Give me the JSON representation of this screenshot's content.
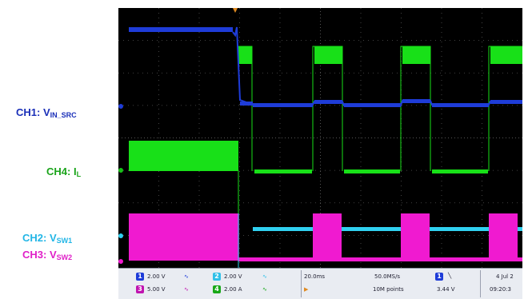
{
  "labels": {
    "ch1": {
      "main": "CH1: V",
      "sub": "IN_SRC",
      "color": "#1a2fb8"
    },
    "ch4": {
      "main": "CH4: I",
      "sub": "L",
      "color": "#1aa41a"
    },
    "ch2": {
      "main": "CH2: V",
      "sub": "SW1",
      "color": "#22b6e6"
    },
    "ch3": {
      "main": "CH3: V",
      "sub": "SW2",
      "color": "#e020c8"
    }
  },
  "colors": {
    "ch1": "#1e3cd8",
    "ch2": "#30d0f0",
    "ch3": "#f01ad0",
    "ch4": "#18e018",
    "grid": "#555555",
    "background": "#000000"
  },
  "statusbar": {
    "ch1_chip": "1",
    "ch1_scale": "2.00 V",
    "ch3_chip": "3",
    "ch3_scale": "5.00 V",
    "ch2_chip": "2",
    "ch2_scale": "2.00 V",
    "ch4_chip": "4",
    "ch4_scale": "2.00 A",
    "timebase": "20.0ms",
    "sample_rate": "50.0MS/s",
    "record_length": "10M points",
    "trigger_chip": "1",
    "trigger_level": "3.44 V",
    "date": "4 Jul 2",
    "time": "09:20:3"
  }
}
